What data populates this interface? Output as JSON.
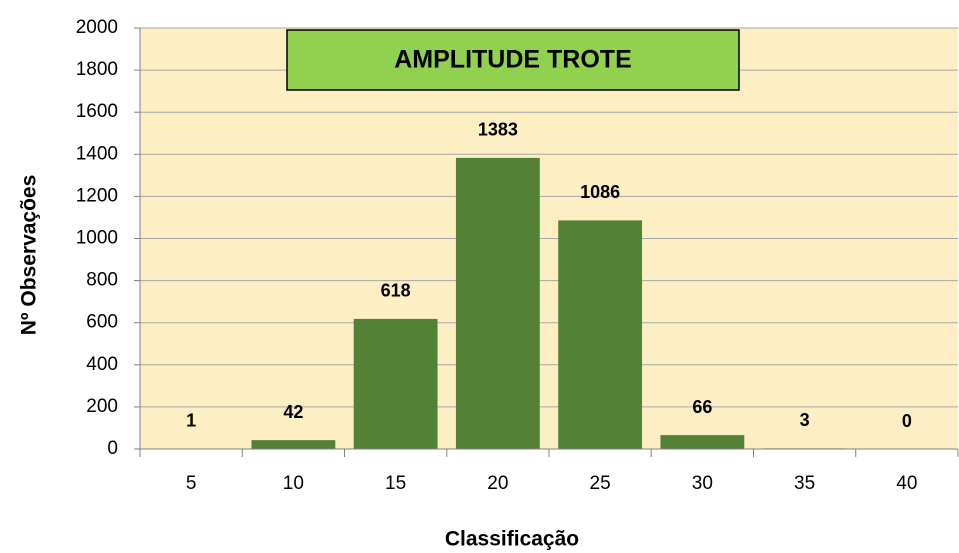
{
  "chart_data": {
    "type": "bar",
    "title": "AMPLITUDE TROTE",
    "x_label": "Classificação",
    "y_label": "Nº Observações",
    "categories": [
      "5",
      "10",
      "15",
      "20",
      "25",
      "30",
      "35",
      "40"
    ],
    "values": [
      1,
      42,
      618,
      1383,
      1086,
      66,
      3,
      0
    ],
    "color": "#538135",
    "ylim": [
      0,
      2000
    ],
    "yticks": [
      0,
      200,
      400,
      600,
      800,
      1000,
      1200,
      1400,
      1600,
      1800,
      2000
    ],
    "grid": true
  }
}
